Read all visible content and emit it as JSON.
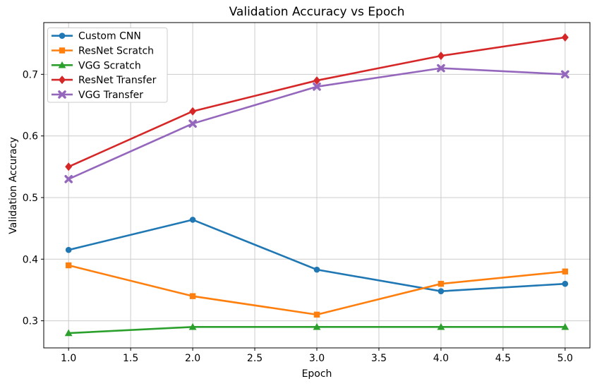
{
  "chart_data": {
    "type": "line",
    "title": "Validation Accuracy vs Epoch",
    "xlabel": "Epoch",
    "ylabel": "Validation Accuracy",
    "x": [
      1.0,
      2.0,
      3.0,
      4.0,
      5.0
    ],
    "series": [
      {
        "name": "Custom CNN",
        "color": "#1f77b4",
        "marker": "circle",
        "values": [
          0.415,
          0.464,
          0.383,
          0.348,
          0.36
        ]
      },
      {
        "name": "ResNet Scratch",
        "color": "#ff7f0e",
        "marker": "square",
        "values": [
          0.39,
          0.34,
          0.31,
          0.36,
          0.38
        ]
      },
      {
        "name": "VGG Scratch",
        "color": "#2ca02c",
        "marker": "triangle",
        "values": [
          0.28,
          0.29,
          0.29,
          0.29,
          0.29
        ]
      },
      {
        "name": "ResNet Transfer",
        "color": "#d62728",
        "marker": "diamond",
        "values": [
          0.55,
          0.64,
          0.69,
          0.73,
          0.76
        ]
      },
      {
        "name": "VGG Transfer",
        "color": "#9467bd",
        "marker": "x",
        "values": [
          0.53,
          0.62,
          0.68,
          0.71,
          0.7
        ]
      }
    ],
    "xticks": [
      1.0,
      1.5,
      2.0,
      2.5,
      3.0,
      3.5,
      4.0,
      4.5,
      5.0
    ],
    "xtick_labels": [
      "1.0",
      "1.5",
      "2.0",
      "2.5",
      "3.0",
      "3.5",
      "4.0",
      "4.5",
      "5.0"
    ],
    "yticks": [
      0.3,
      0.4,
      0.5,
      0.6,
      0.7
    ],
    "ytick_labels": [
      "0.3",
      "0.4",
      "0.5",
      "0.6",
      "0.7"
    ],
    "xlim": [
      0.8,
      5.2
    ],
    "ylim": [
      0.256,
      0.784
    ],
    "grid": true,
    "grid_color": "#cccccc",
    "spine_color": "#000000",
    "background_color": "#ffffff",
    "legend_position": "upper-left"
  }
}
